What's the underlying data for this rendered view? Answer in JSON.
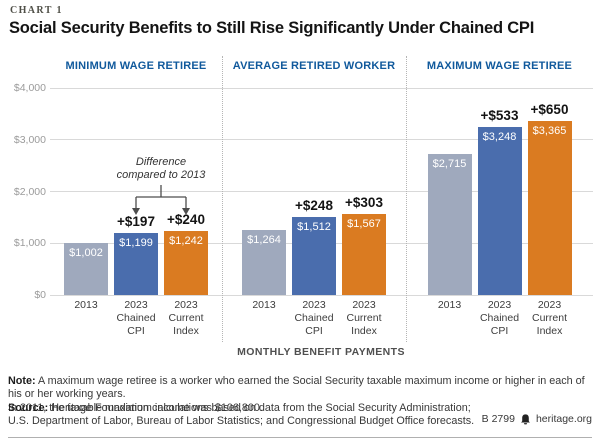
{
  "header": {
    "kicker": "CHART 1",
    "title": "Social Security Benefits to Still Rise Significantly Under Chained CPI"
  },
  "chart_data": {
    "type": "bar",
    "title": "Social Security Benefits to Still Rise Significantly Under Chained CPI",
    "xlabel": "MONTHLY BENEFIT PAYMENTS",
    "ylabel": "",
    "ylim": [
      0,
      4000
    ],
    "yticks": [
      0,
      1000,
      2000,
      3000,
      4000
    ],
    "ytick_labels": [
      "$0",
      "$1,000",
      "$2,000",
      "$3,000",
      "$4,000"
    ],
    "grid": true,
    "legend": "none",
    "categories": [
      "2013",
      "2023\nChained\nCPI",
      "2023\nCurrent\nIndex"
    ],
    "bar_colors": [
      "#9fa9bd",
      "#4a6dad",
      "#da7b21"
    ],
    "panels": [
      {
        "label": "MINIMUM WAGE RETIREE",
        "values": [
          1002,
          1199,
          1242
        ],
        "value_labels": [
          "$1,002",
          "$1,199",
          "$1,242"
        ],
        "diff_labels": [
          "",
          "+$197",
          "+$240"
        ]
      },
      {
        "label": "AVERAGE RETIRED WORKER",
        "values": [
          1264,
          1512,
          1567
        ],
        "value_labels": [
          "$1,264",
          "$1,512",
          "$1,567"
        ],
        "diff_labels": [
          "",
          "+$248",
          "+$303"
        ]
      },
      {
        "label": "MAXIMUM WAGE RETIREE",
        "values": [
          2715,
          3248,
          3365
        ],
        "value_labels": [
          "$2,715",
          "$3,248",
          "$3,365"
        ],
        "diff_labels": [
          "",
          "+$533",
          "+$650"
        ]
      }
    ],
    "annotation": {
      "panel": 0,
      "targets": [
        1,
        2
      ],
      "text": "Difference\ncompared to 2013"
    }
  },
  "colors": {
    "panel_header_blue": "#10599c",
    "bar_gray": "#9fa9bd",
    "bar_blue": "#4a6dad",
    "bar_orange": "#da7b21",
    "gridline": "#d9d9d9"
  },
  "footer": {
    "note_label": "Note:",
    "note_text": "A maximum wage retiree is a worker who earned the Social Security taxable maximum income or higher in each of his or her working years.\nIn 2011, the taxable maximum income was $106,800.",
    "source_label": "Source:",
    "source_text": "Heritage Foundation calculations based on data from the Social Security Administration;\nU.S. Department of Labor, Bureau of Labor Statistics; and Congressional Budget Office forecasts.",
    "pub_id": "B 2799",
    "site": "heritage.org"
  }
}
